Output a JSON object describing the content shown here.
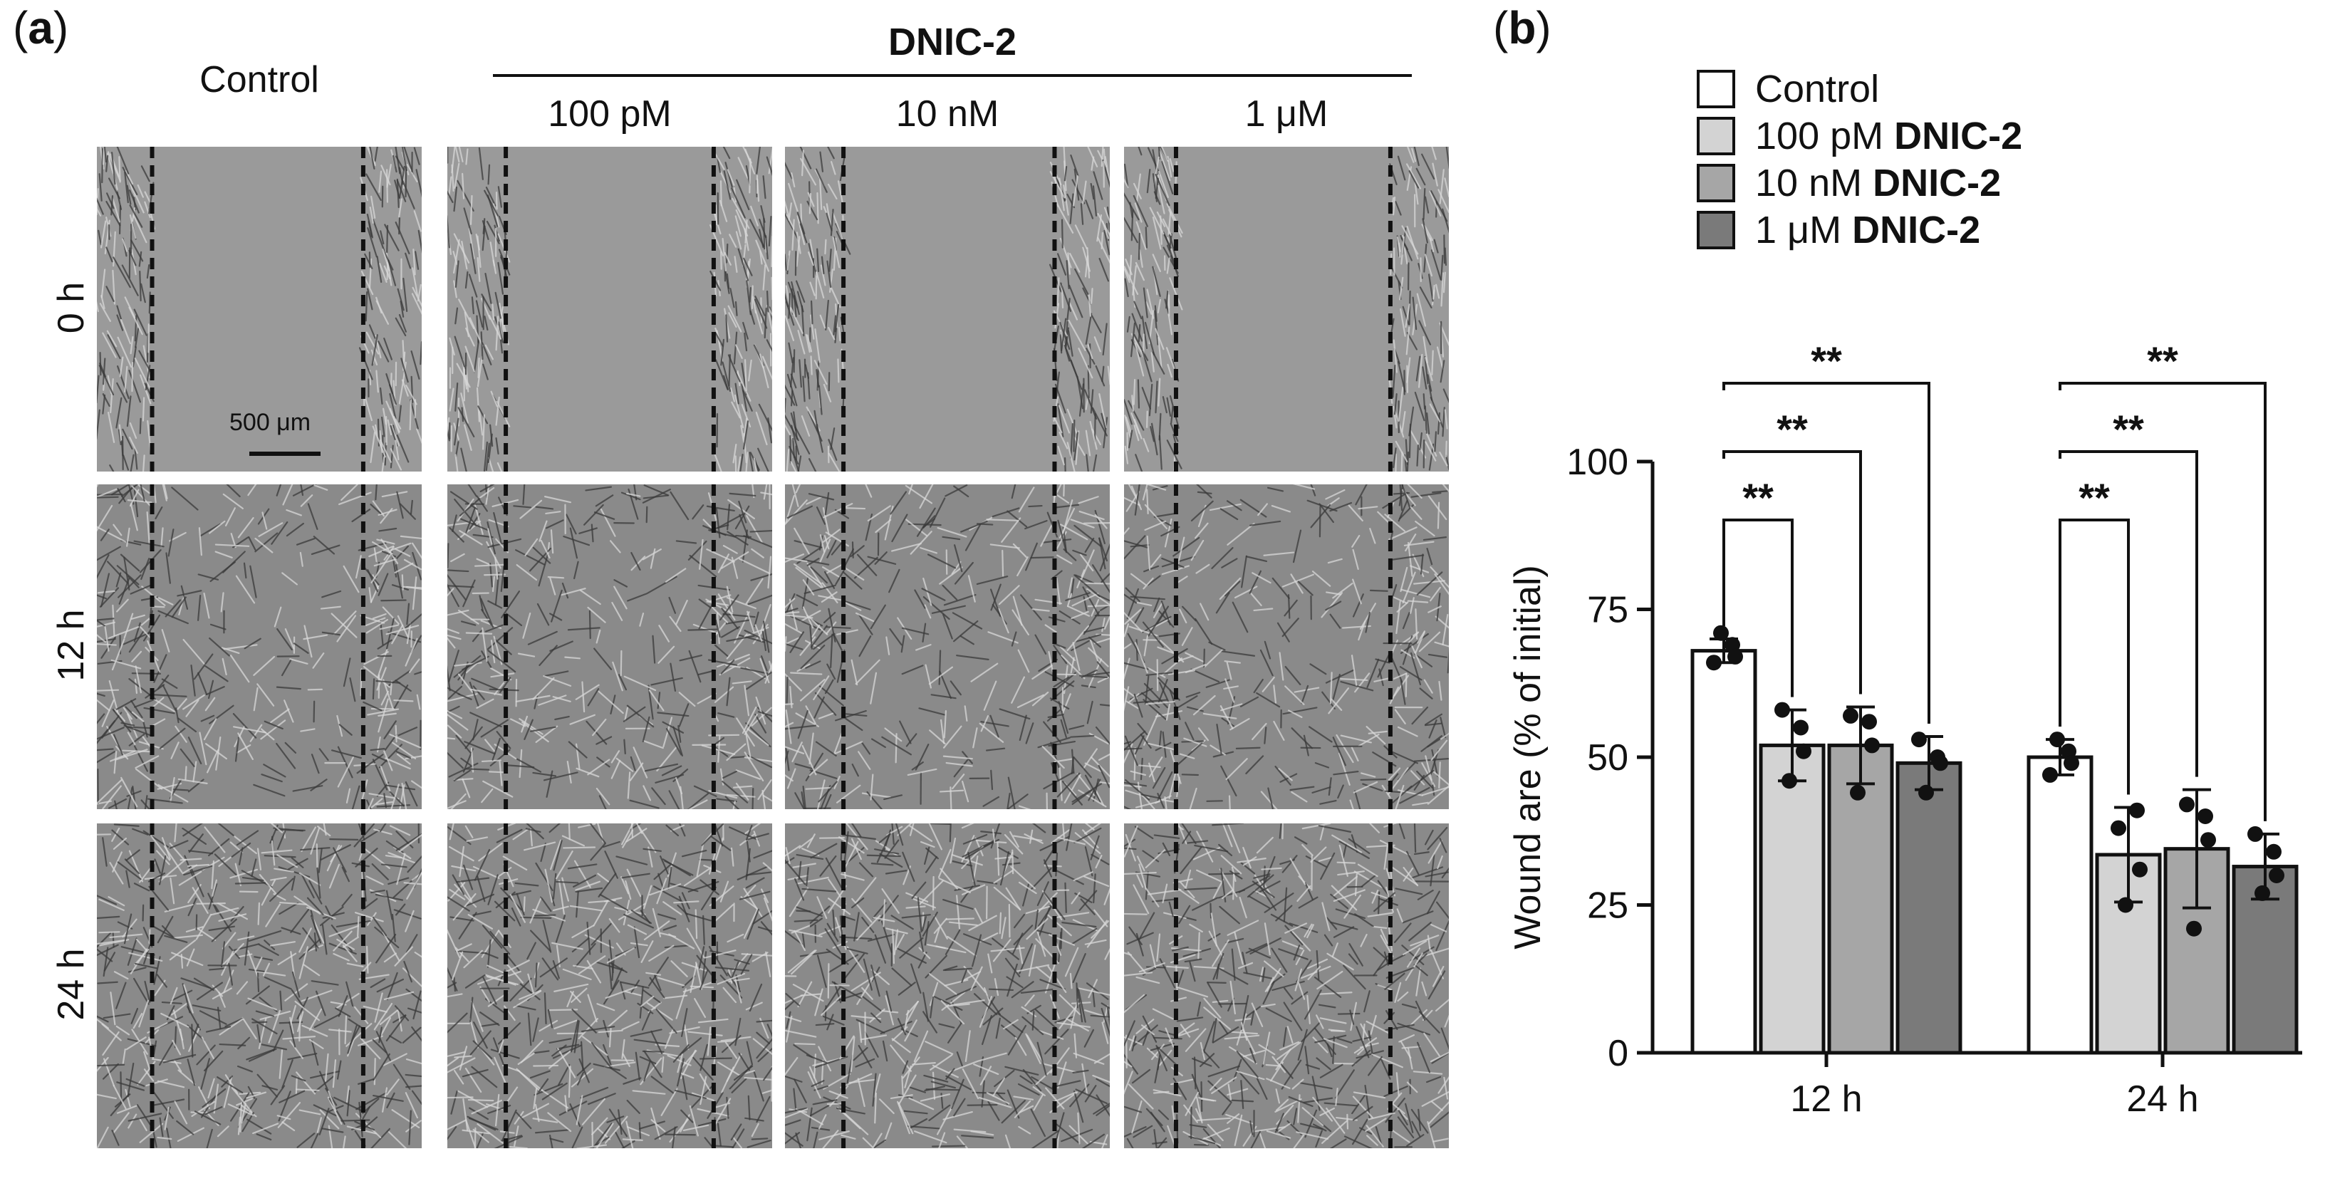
{
  "panel_a": {
    "label_open": "(",
    "label_letter": "a",
    "label_close": ")",
    "group_title": "DNIC-2",
    "columns": [
      "Control",
      "100 pM",
      "10 nM",
      "1 μM"
    ],
    "rows": [
      "0 h",
      "12 h",
      "24 h"
    ],
    "scale_bar": "500 μm"
  },
  "panel_b": {
    "label_open": "(",
    "label_letter": "b",
    "label_close": ")",
    "legend": [
      {
        "prefix": "Control",
        "bold": "",
        "color": "#ffffff"
      },
      {
        "prefix": "100 pM ",
        "bold": "DNIC-2",
        "color": "#d3d3d3"
      },
      {
        "prefix": "10 nM ",
        "bold": "DNIC-2",
        "color": "#a6a6a6"
      },
      {
        "prefix": "1 μM ",
        "bold": "DNIC-2",
        "color": "#7a7a7a"
      }
    ],
    "significance": "**"
  },
  "chart_data": {
    "type": "bar",
    "ylabel": "Wound are (% of initial)",
    "xlabel": "",
    "ylim": [
      0,
      100
    ],
    "yticks": [
      0,
      25,
      50,
      75,
      100
    ],
    "categories": [
      "12 h",
      "24 h"
    ],
    "series": [
      {
        "name": "Control",
        "color": "#ffffff",
        "values": [
          68,
          50
        ],
        "errors": [
          2,
          3
        ],
        "points": [
          [
            66,
            69,
            71,
            67
          ],
          [
            47,
            51,
            53,
            49
          ]
        ]
      },
      {
        "name": "100 pM DNIC-2",
        "color": "#d3d3d3",
        "values": [
          52,
          33.5
        ],
        "errors": [
          6,
          8
        ],
        "points": [
          [
            58,
            55,
            46,
            51
          ],
          [
            38,
            41,
            25,
            31
          ]
        ]
      },
      {
        "name": "10 nM DNIC-2",
        "color": "#a6a6a6",
        "values": [
          52,
          34.5
        ],
        "errors": [
          6.5,
          10
        ],
        "points": [
          [
            57,
            56,
            44,
            52
          ],
          [
            42,
            40,
            21,
            36
          ]
        ]
      },
      {
        "name": "1 μM DNIC-2",
        "color": "#7a7a7a",
        "values": [
          49,
          31.5
        ],
        "errors": [
          4.5,
          5.5
        ],
        "points": [
          [
            53,
            50,
            44,
            49
          ],
          [
            37,
            34,
            27,
            30
          ]
        ]
      }
    ]
  }
}
